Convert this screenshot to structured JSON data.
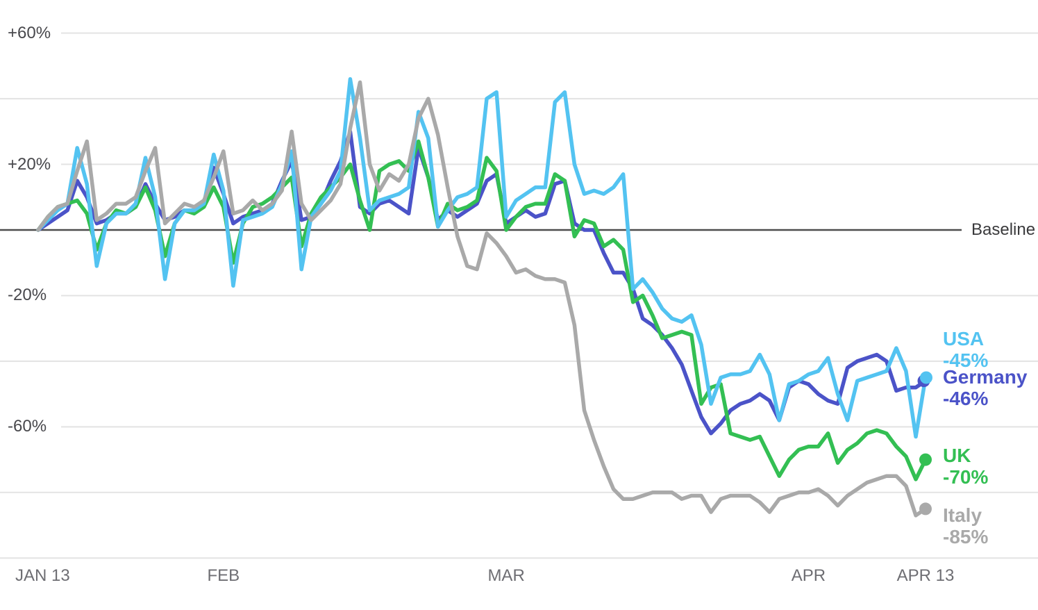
{
  "chart_data": {
    "type": "line",
    "x_domain_days": 91,
    "x_axis": {
      "ticks": [
        {
          "label": "JAN 13",
          "day": 0,
          "anchor": "start"
        },
        {
          "label": "FEB",
          "day": 19,
          "anchor": "middle"
        },
        {
          "label": "MAR",
          "day": 48,
          "anchor": "middle"
        },
        {
          "label": "APR",
          "day": 79,
          "anchor": "middle"
        },
        {
          "label": "APR 13",
          "day": 91,
          "anchor": "middle"
        }
      ]
    },
    "y_axis": {
      "unit": "percent change vs baseline",
      "range": [
        -100,
        70
      ],
      "labeled_gridlines": [
        {
          "label": "+60%",
          "value": 60
        },
        {
          "label": "+20%",
          "value": 20
        },
        {
          "label": "-20%",
          "value": -20
        },
        {
          "label": "-60%",
          "value": -60
        }
      ],
      "unlabeled_gridlines": [
        40,
        -40,
        -80,
        -100
      ]
    },
    "baseline": {
      "value": 0,
      "label": "Baseline"
    },
    "legend_position": "right-of-line-ends",
    "grid": true,
    "series": [
      {
        "name": "USA",
        "value_label": "-45%",
        "color": "#53C3F1",
        "final_value": -45,
        "values": [
          0,
          3,
          6,
          8,
          25,
          14,
          -11,
          2,
          5,
          5,
          8,
          22,
          10,
          -15,
          2,
          6,
          6,
          8,
          23,
          12,
          -17,
          3,
          4,
          5,
          7,
          14,
          24,
          -12,
          4,
          8,
          12,
          18,
          46,
          28,
          6,
          9,
          10,
          11,
          13,
          36,
          28,
          1,
          6,
          10,
          11,
          13,
          40,
          42,
          4,
          9,
          11,
          13,
          13,
          39,
          42,
          20,
          11,
          12,
          11,
          13,
          17,
          -18,
          -15,
          -19,
          -24,
          -27,
          -28,
          -26,
          -35,
          -53,
          -45,
          -44,
          -44,
          -43,
          -38,
          -44,
          -58,
          -47,
          -46,
          -44,
          -43,
          -39,
          -50,
          -58,
          -46,
          -45,
          -44,
          -43,
          -36,
          -43,
          -63,
          -45
        ]
      },
      {
        "name": "Germany",
        "value_label": "-46%",
        "color": "#4B53C8",
        "final_value": -46,
        "values": [
          0,
          2,
          4,
          6,
          15,
          10,
          2,
          3,
          5,
          5,
          7,
          14,
          8,
          3,
          4,
          6,
          6,
          8,
          19,
          11,
          2,
          4,
          5,
          6,
          8,
          15,
          21,
          3,
          4,
          8,
          15,
          21,
          30,
          7,
          5,
          8,
          9,
          7,
          5,
          25,
          16,
          3,
          6,
          4,
          6,
          8,
          15,
          17,
          2,
          4,
          6,
          4,
          5,
          14,
          15,
          2,
          0,
          0,
          -7,
          -13,
          -13,
          -18,
          -27,
          -29,
          -32,
          -36,
          -41,
          -49,
          -57,
          -62,
          -59,
          -55,
          -53,
          -52,
          -50,
          -52,
          -58,
          -48,
          -46,
          -47,
          -50,
          -52,
          -53,
          -42,
          -40,
          -39,
          -38,
          -40,
          -49,
          -48,
          -48,
          -46
        ]
      },
      {
        "name": "UK",
        "value_label": "-70%",
        "color": "#33BF53",
        "final_value": -70,
        "values": [
          0,
          4,
          7,
          8,
          9,
          5,
          -6,
          2,
          6,
          5,
          7,
          13,
          6,
          -8,
          2,
          6,
          5,
          7,
          13,
          7,
          -10,
          2,
          7,
          8,
          10,
          13,
          16,
          -5,
          5,
          10,
          13,
          16,
          20,
          9,
          0,
          18,
          20,
          21,
          18,
          27,
          16,
          1,
          8,
          6,
          7,
          9,
          22,
          18,
          0,
          4,
          7,
          8,
          8,
          17,
          15,
          -2,
          3,
          2,
          -5,
          -3,
          -6,
          -22,
          -20,
          -26,
          -33,
          -32,
          -31,
          -32,
          -53,
          -48,
          -47,
          -62,
          -63,
          -64,
          -63,
          -69,
          -75,
          -70,
          -67,
          -66,
          -66,
          -62,
          -71,
          -67,
          -65,
          -62,
          -61,
          -62,
          -66,
          -69,
          -76,
          -70
        ]
      },
      {
        "name": "Italy",
        "value_label": "-85%",
        "color": "#A9A9A9",
        "final_value": -85,
        "values": [
          0,
          4,
          7,
          8,
          18,
          27,
          3,
          5,
          8,
          8,
          10,
          18,
          25,
          2,
          5,
          8,
          7,
          9,
          16,
          24,
          5,
          6,
          9,
          6,
          8,
          12,
          30,
          8,
          3,
          6,
          9,
          14,
          31,
          45,
          20,
          12,
          17,
          15,
          20,
          34,
          40,
          29,
          13,
          -2,
          -11,
          -12,
          -1,
          -4,
          -8,
          -13,
          -12,
          -14,
          -15,
          -15,
          -16,
          -29,
          -55,
          -64,
          -72,
          -79,
          -82,
          -82,
          -81,
          -80,
          -80,
          -80,
          -82,
          -81,
          -81,
          -86,
          -82,
          -81,
          -81,
          -81,
          -83,
          -86,
          -82,
          -81,
          -80,
          -80,
          -79,
          -81,
          -84,
          -81,
          -79,
          -77,
          -76,
          -75,
          -75,
          -78,
          -87,
          -85
        ]
      }
    ],
    "colors": {
      "gridline": "#E3E3E3",
      "baseline": "#4D4D4D",
      "y_label_text": "#48484C",
      "x_label_text": "#6E6E73",
      "baseline_label_text": "#3A3A3C",
      "background": "#FFFFFF"
    }
  }
}
